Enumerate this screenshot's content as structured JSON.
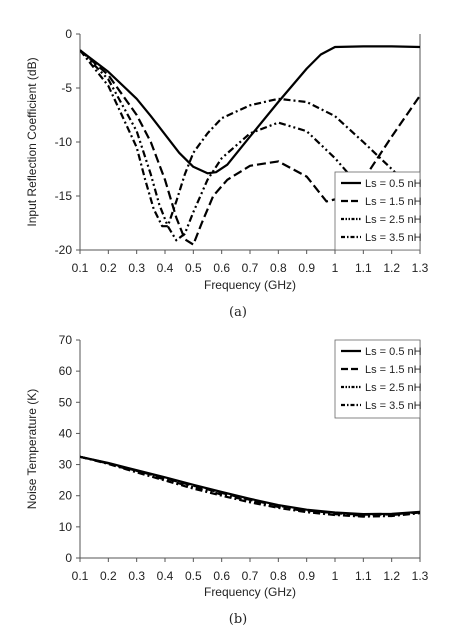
{
  "chart_data": [
    {
      "type": "line",
      "caption": "(a)",
      "xlabel": "Frequency (GHz)",
      "ylabel": "Input Reflection Coefficient (dB)",
      "xlim": [
        0.1,
        1.3
      ],
      "ylim": [
        -20,
        0
      ],
      "xticks": [
        0.1,
        0.2,
        0.3,
        0.4,
        0.5,
        0.6,
        0.7,
        0.8,
        0.9,
        1,
        1.1,
        1.2,
        1.3
      ],
      "yticks": [
        0,
        -5,
        -10,
        -15,
        -20
      ],
      "xtick_labels": [
        "0.1",
        "0.2",
        "0.3",
        "0.4",
        "0.5",
        "0.6",
        "0.7",
        "0.8",
        "0.9",
        "1",
        "1.1",
        "1.2",
        "1.3"
      ],
      "ytick_labels": [
        "0",
        "-5",
        "-10",
        "-15",
        "-20"
      ],
      "grid": false,
      "legend_position": "lower-right",
      "series": [
        {
          "name": "Ls = 0.5 nH",
          "style": "solid",
          "x": [
            0.1,
            0.2,
            0.3,
            0.35,
            0.4,
            0.45,
            0.5,
            0.55,
            0.58,
            0.62,
            0.7,
            0.8,
            0.9,
            0.95,
            1.0,
            1.1,
            1.2,
            1.3
          ],
          "y": [
            -1.5,
            -3.5,
            -6.0,
            -7.6,
            -9.3,
            -11.0,
            -12.3,
            -12.9,
            -12.8,
            -12.1,
            -9.5,
            -6.3,
            -3.2,
            -1.9,
            -1.2,
            -1.15,
            -1.15,
            -1.2
          ]
        },
        {
          "name": "Ls = 1.5 nH",
          "style": "dash",
          "x": [
            0.1,
            0.2,
            0.3,
            0.35,
            0.4,
            0.44,
            0.47,
            0.5,
            0.53,
            0.57,
            0.62,
            0.7,
            0.8,
            0.9,
            0.97,
            1.05,
            1.1,
            1.2,
            1.3
          ],
          "y": [
            -1.5,
            -3.8,
            -7.5,
            -10.0,
            -13.5,
            -17.0,
            -19.0,
            -19.5,
            -17.5,
            -15.0,
            -13.5,
            -12.2,
            -11.8,
            -13.2,
            -15.5,
            -15.0,
            -13.5,
            -9.5,
            -5.7
          ]
        },
        {
          "name": "Ls = 2.5 nH",
          "style": "dashdotdot",
          "x": [
            0.1,
            0.2,
            0.3,
            0.35,
            0.38,
            0.41,
            0.44,
            0.47,
            0.5,
            0.55,
            0.6,
            0.7,
            0.8,
            0.9,
            1.0,
            1.1,
            1.2,
            1.25
          ],
          "y": [
            -1.5,
            -4.2,
            -9.0,
            -13.0,
            -15.8,
            -17.8,
            -19.1,
            -18.5,
            -16.5,
            -13.5,
            -11.5,
            -9.2,
            -8.2,
            -9.0,
            -11.5,
            -14.5,
            -16.5,
            -17.5
          ]
        },
        {
          "name": "Ls = 3.5 nH",
          "style": "dashdot",
          "x": [
            0.1,
            0.2,
            0.3,
            0.33,
            0.36,
            0.39,
            0.41,
            0.44,
            0.47,
            0.5,
            0.55,
            0.6,
            0.7,
            0.8,
            0.9,
            1.0,
            1.1,
            1.2,
            1.23
          ],
          "y": [
            -1.5,
            -4.8,
            -10.5,
            -13.5,
            -16.2,
            -17.8,
            -17.8,
            -15.5,
            -13.0,
            -11.0,
            -9.2,
            -7.8,
            -6.6,
            -6.0,
            -6.3,
            -7.6,
            -10.0,
            -12.5,
            -13.3
          ]
        }
      ]
    },
    {
      "type": "line",
      "caption": "(b)",
      "xlabel": "Frequency (GHz)",
      "ylabel": "Noise Temperature (K)",
      "xlim": [
        0.1,
        1.3
      ],
      "ylim": [
        0,
        70
      ],
      "xticks": [
        0.1,
        0.2,
        0.3,
        0.4,
        0.5,
        0.6,
        0.7,
        0.8,
        0.9,
        1,
        1.1,
        1.2,
        1.3
      ],
      "yticks": [
        0,
        10,
        20,
        30,
        40,
        50,
        60,
        70
      ],
      "xtick_labels": [
        "0.1",
        "0.2",
        "0.3",
        "0.4",
        "0.5",
        "0.6",
        "0.7",
        "0.8",
        "0.9",
        "1",
        "1.1",
        "1.2",
        "1.3"
      ],
      "ytick_labels": [
        "0",
        "10",
        "20",
        "30",
        "40",
        "50",
        "60",
        "70"
      ],
      "grid": false,
      "legend_position": "upper-right",
      "series": [
        {
          "name": "Ls = 0.5 nH",
          "style": "solid",
          "x": [
            0.1,
            0.2,
            0.3,
            0.4,
            0.5,
            0.6,
            0.7,
            0.8,
            0.9,
            1.0,
            1.1,
            1.2,
            1.3
          ],
          "y": [
            32.5,
            30.5,
            28.2,
            25.9,
            23.5,
            21.2,
            19.0,
            17.0,
            15.5,
            14.6,
            14.1,
            14.2,
            14.8
          ]
        },
        {
          "name": "Ls = 1.5 nH",
          "style": "dash",
          "x": [
            0.1,
            0.2,
            0.3,
            0.4,
            0.5,
            0.6,
            0.7,
            0.8,
            0.9,
            1.0,
            1.1,
            1.2,
            1.3
          ],
          "y": [
            32.5,
            30.4,
            28.0,
            25.6,
            23.2,
            20.9,
            18.7,
            16.8,
            15.3,
            14.4,
            13.9,
            14.0,
            14.7
          ]
        },
        {
          "name": "Ls = 2.5 nH",
          "style": "dashdotdot",
          "x": [
            0.1,
            0.2,
            0.3,
            0.4,
            0.5,
            0.6,
            0.7,
            0.8,
            0.9,
            1.0,
            1.1,
            1.2,
            1.3
          ],
          "y": [
            32.5,
            30.3,
            27.7,
            25.2,
            22.7,
            20.4,
            18.3,
            16.4,
            15.0,
            14.1,
            13.6,
            13.8,
            14.6
          ]
        },
        {
          "name": "Ls = 3.5 nH",
          "style": "dashdot",
          "x": [
            0.1,
            0.2,
            0.3,
            0.4,
            0.5,
            0.6,
            0.7,
            0.8,
            0.9,
            1.0,
            1.1,
            1.2,
            1.3
          ],
          "y": [
            32.5,
            30.2,
            27.5,
            24.9,
            22.3,
            20.0,
            17.9,
            16.1,
            14.7,
            13.8,
            13.3,
            13.5,
            14.4
          ]
        }
      ]
    }
  ]
}
